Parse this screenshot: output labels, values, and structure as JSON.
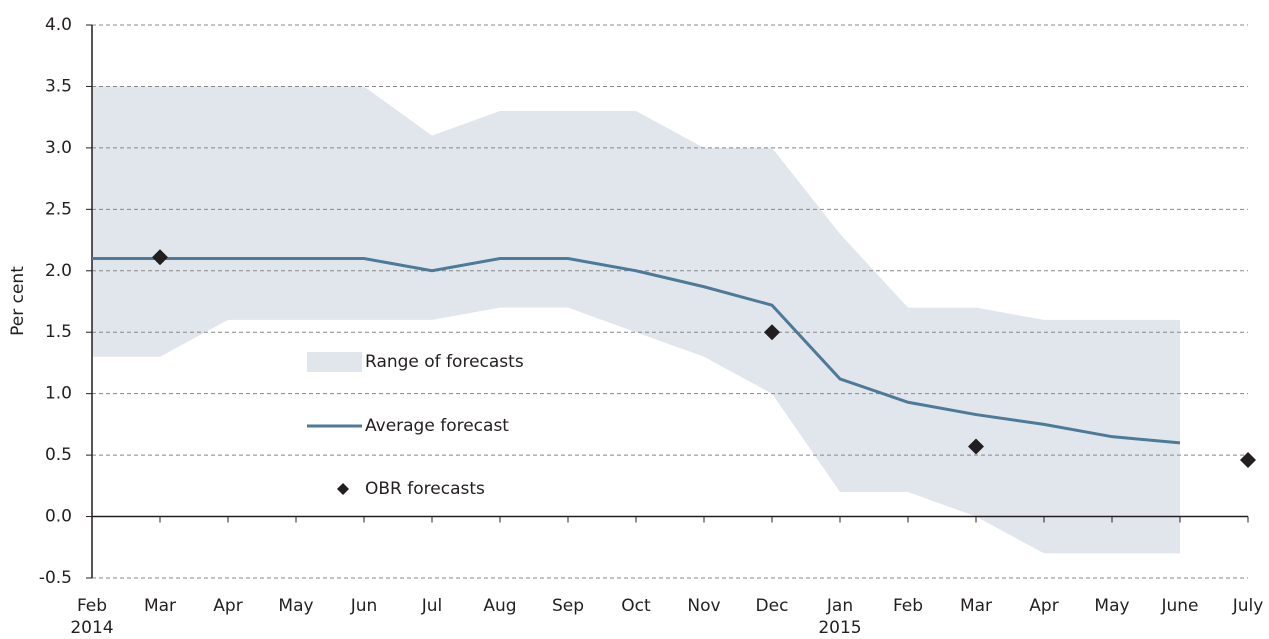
{
  "chart_data": {
    "type": "line",
    "y_label": "Per cent",
    "categories": [
      "Feb",
      "Mar",
      "Apr",
      "May",
      "Jun",
      "Jul",
      "Aug",
      "Sep",
      "Oct",
      "Nov",
      "Dec",
      "Jan",
      "Feb",
      "Mar",
      "Apr",
      "May",
      "June",
      "July"
    ],
    "year_labels": [
      "2014",
      null,
      null,
      null,
      null,
      null,
      null,
      null,
      null,
      null,
      null,
      "2015",
      null,
      null,
      null,
      null,
      null,
      null
    ],
    "ylim": [
      -0.5,
      4.0
    ],
    "yticks": [
      -0.5,
      {
        "value": 0,
        "label": "0.0"
      },
      0.5,
      {
        "value": 1,
        "label": "1.0"
      },
      1.5,
      {
        "value": 2,
        "label": "2.0"
      },
      2.5,
      {
        "value": 3,
        "label": "3.0"
      },
      3.5,
      {
        "value": 4,
        "label": "4.0"
      }
    ],
    "grid": true,
    "series": [
      {
        "name": "Range of forecasts",
        "type": "band",
        "color": "#e1e6ed",
        "values": [
          3.5,
          3.5,
          3.5,
          3.5,
          3.5,
          3.1,
          3.3,
          3.3,
          3.3,
          3.0,
          3.0,
          2.3,
          1.7,
          1.7,
          1.6,
          1.6,
          1.6,
          null
        ],
        "lower": [
          1.3,
          1.3,
          1.6,
          1.6,
          1.6,
          1.6,
          1.7,
          1.7,
          1.5,
          1.3,
          1.0,
          0.2,
          0.2,
          0.0,
          -0.3,
          -0.3,
          -0.3,
          null
        ]
      },
      {
        "name": "Average forecast",
        "type": "line",
        "color": "#4d7a99",
        "values": [
          2.1,
          2.1,
          2.1,
          2.1,
          2.1,
          2.0,
          2.1,
          2.1,
          2.0,
          1.87,
          1.72,
          1.12,
          0.93,
          0.83,
          0.75,
          0.65,
          0.6,
          null
        ]
      },
      {
        "name": "OBR forecasts",
        "type": "scatter",
        "color": "#231f20",
        "values": [
          null,
          2.11,
          null,
          null,
          null,
          null,
          null,
          null,
          null,
          null,
          1.5,
          null,
          null,
          0.57,
          null,
          null,
          null,
          0.46
        ]
      }
    ]
  }
}
